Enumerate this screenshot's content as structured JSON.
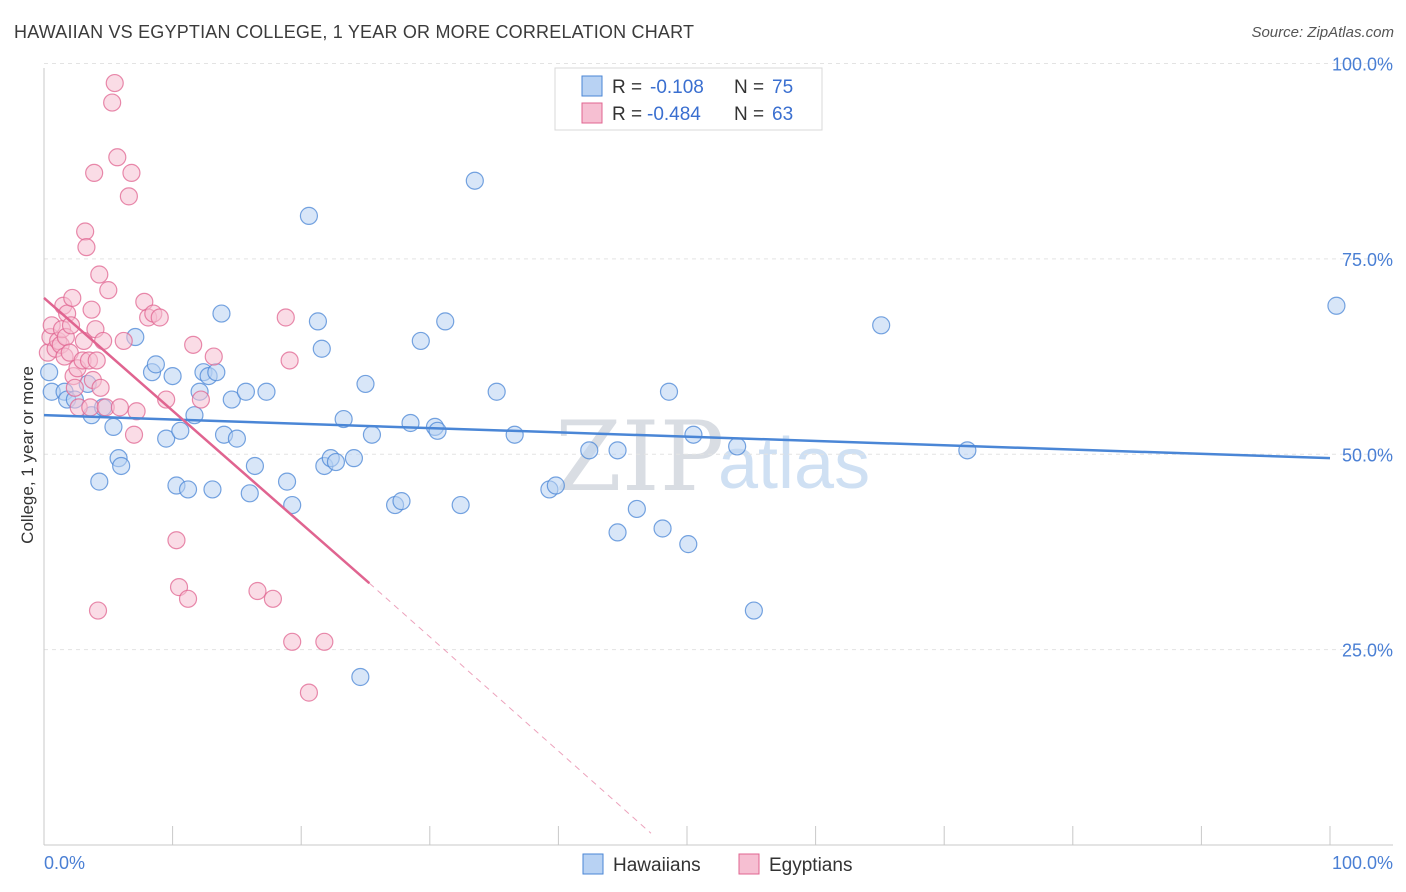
{
  "title": "HAWAIIAN VS EGYPTIAN COLLEGE, 1 YEAR OR MORE CORRELATION CHART",
  "source": "Source: ZipAtlas.com",
  "colors": {
    "blue": "#4a86d6",
    "blue_fill": "#b8d2f3",
    "pink": "#e06490",
    "pink_fill": "#f6bfd2",
    "axis_text": "#4a7fd4"
  },
  "chart_data": {
    "type": "scatter",
    "xlabel": "",
    "ylabel": "College, 1 year or more",
    "xlim": [
      0,
      100
    ],
    "ylim": [
      0,
      100
    ],
    "x_tick_labels": {
      "left": "0.0%",
      "right": "100.0%"
    },
    "y_ticks": [
      {
        "value": 25,
        "label": "25.0%"
      },
      {
        "value": 50,
        "label": "50.0%"
      },
      {
        "value": 75,
        "label": "75.0%"
      },
      {
        "value": 100,
        "label": "100.0%"
      }
    ],
    "watermark": {
      "zip": "ZIP",
      "atlas": "atlas"
    },
    "legend_top": [
      {
        "series": "Hawaiians",
        "r_label": "R =",
        "r_value": "-0.108",
        "n_label": "N =",
        "n_value": "75"
      },
      {
        "series": "Egyptians",
        "r_label": "R =",
        "r_value": "-0.484",
        "n_label": "N =",
        "n_value": "63"
      }
    ],
    "legend_bottom": [
      "Hawaiians",
      "Egyptians"
    ],
    "series": [
      {
        "name": "Hawaiians",
        "color": "#4a86d6",
        "trend": {
          "x0": 0,
          "y0": 55,
          "x1": 100,
          "y1": 49.5
        },
        "points": [
          [
            0.4,
            60.5
          ],
          [
            0.6,
            58
          ],
          [
            1.6,
            58
          ],
          [
            1.8,
            57
          ],
          [
            2.4,
            57
          ],
          [
            3.4,
            59
          ],
          [
            3.7,
            55
          ],
          [
            4.6,
            56
          ],
          [
            5.4,
            53.5
          ],
          [
            5.8,
            49.5
          ],
          [
            6,
            48.5
          ],
          [
            4.3,
            46.5
          ],
          [
            7.1,
            65
          ],
          [
            8.4,
            60.5
          ],
          [
            8.7,
            61.5
          ],
          [
            9.5,
            52
          ],
          [
            10,
            60
          ],
          [
            10.3,
            46
          ],
          [
            10.6,
            53
          ],
          [
            11.2,
            45.5
          ],
          [
            11.7,
            55
          ],
          [
            12.1,
            58
          ],
          [
            12.4,
            60.5
          ],
          [
            12.8,
            60
          ],
          [
            13.1,
            45.5
          ],
          [
            13.4,
            60.5
          ],
          [
            13.8,
            68
          ],
          [
            14,
            52.5
          ],
          [
            14.6,
            57
          ],
          [
            15,
            52
          ],
          [
            15.7,
            58
          ],
          [
            16,
            45
          ],
          [
            16.4,
            48.5
          ],
          [
            17.3,
            58
          ],
          [
            18.9,
            46.5
          ],
          [
            19.3,
            43.5
          ],
          [
            20.6,
            80.5
          ],
          [
            21.3,
            67
          ],
          [
            21.6,
            63.5
          ],
          [
            21.8,
            48.5
          ],
          [
            22.3,
            49.5
          ],
          [
            22.7,
            49
          ],
          [
            23.3,
            54.5
          ],
          [
            24.1,
            49.5
          ],
          [
            24.6,
            21.5
          ],
          [
            25,
            59
          ],
          [
            25.5,
            52.5
          ],
          [
            27.3,
            43.5
          ],
          [
            27.8,
            44
          ],
          [
            28.5,
            54
          ],
          [
            29.3,
            64.5
          ],
          [
            30.4,
            53.5
          ],
          [
            30.6,
            53
          ],
          [
            31.2,
            67
          ],
          [
            32.4,
            43.5
          ],
          [
            33.5,
            85
          ],
          [
            35.2,
            58
          ],
          [
            36.6,
            52.5
          ],
          [
            39.3,
            45.5
          ],
          [
            39.8,
            46
          ],
          [
            42.4,
            50.5
          ],
          [
            44.6,
            40
          ],
          [
            44.6,
            50.5
          ],
          [
            46.1,
            43
          ],
          [
            48.1,
            40.5
          ],
          [
            48.6,
            58
          ],
          [
            50.1,
            38.5
          ],
          [
            50.5,
            52.5
          ],
          [
            53.9,
            51
          ],
          [
            55.2,
            30
          ],
          [
            65.1,
            66.5
          ],
          [
            71.8,
            50.5
          ],
          [
            100.5,
            69
          ]
        ]
      },
      {
        "name": "Egyptians",
        "color": "#e06490",
        "trend": {
          "x0": 0,
          "y0": 70,
          "x1": 25.3,
          "y1": 33.5,
          "dash_x1": 47.2,
          "dash_y1": 1.5
        },
        "points": [
          [
            0.3,
            63
          ],
          [
            0.5,
            65
          ],
          [
            0.6,
            66.5
          ],
          [
            0.9,
            63.5
          ],
          [
            1.1,
            64.5
          ],
          [
            1.3,
            64
          ],
          [
            1.4,
            66
          ],
          [
            1.5,
            69
          ],
          [
            1.6,
            62.5
          ],
          [
            1.7,
            65
          ],
          [
            1.8,
            68
          ],
          [
            2,
            63
          ],
          [
            2.1,
            66.5
          ],
          [
            2.2,
            70
          ],
          [
            2.3,
            60
          ],
          [
            2.4,
            58.5
          ],
          [
            2.6,
            61
          ],
          [
            2.7,
            56
          ],
          [
            3,
            62
          ],
          [
            3.1,
            64.5
          ],
          [
            3.2,
            78.5
          ],
          [
            3.3,
            76.5
          ],
          [
            3.5,
            62
          ],
          [
            3.6,
            56
          ],
          [
            3.7,
            68.5
          ],
          [
            3.8,
            59.5
          ],
          [
            3.9,
            86
          ],
          [
            4,
            66
          ],
          [
            4.1,
            62
          ],
          [
            4.2,
            30
          ],
          [
            4.3,
            73
          ],
          [
            4.4,
            58.5
          ],
          [
            4.6,
            64.5
          ],
          [
            4.8,
            56
          ],
          [
            5,
            71
          ],
          [
            5.3,
            95
          ],
          [
            5.5,
            97.5
          ],
          [
            5.7,
            88
          ],
          [
            5.9,
            56
          ],
          [
            6.2,
            64.5
          ],
          [
            6.6,
            83
          ],
          [
            6.8,
            86
          ],
          [
            7,
            52.5
          ],
          [
            7.2,
            55.5
          ],
          [
            7.8,
            69.5
          ],
          [
            8.1,
            67.5
          ],
          [
            8.5,
            68
          ],
          [
            9,
            67.5
          ],
          [
            9.5,
            57
          ],
          [
            10.3,
            39
          ],
          [
            10.5,
            33
          ],
          [
            11.2,
            31.5
          ],
          [
            11.6,
            64
          ],
          [
            12.2,
            57
          ],
          [
            13.2,
            62.5
          ],
          [
            16.6,
            32.5
          ],
          [
            17.8,
            31.5
          ],
          [
            18.8,
            67.5
          ],
          [
            19.1,
            62
          ],
          [
            19.3,
            26
          ],
          [
            20.6,
            19.5
          ],
          [
            21.8,
            26
          ]
        ]
      }
    ]
  }
}
